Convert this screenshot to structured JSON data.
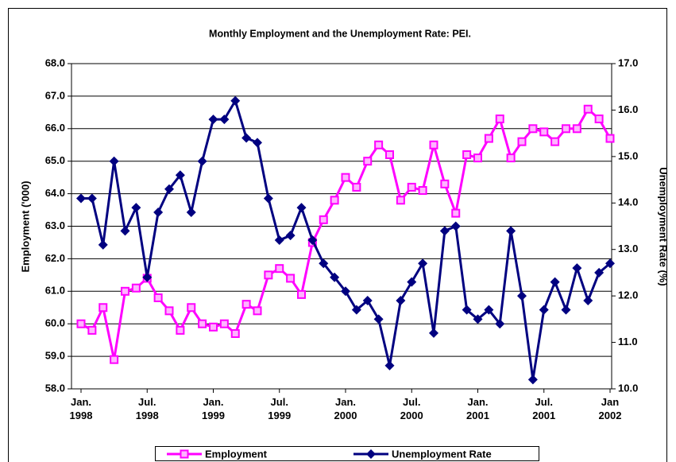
{
  "chart_data": {
    "type": "line",
    "title": "Monthly Employment and the Unemployment Rate: PEI.",
    "ylabel": "Employment ('000)",
    "y2label": "Unemployment Rate (%)",
    "categories": [
      "Jan. 1998",
      null,
      null,
      null,
      null,
      null,
      "Jul. 1998",
      null,
      null,
      null,
      null,
      null,
      "Jan. 1999",
      null,
      null,
      null,
      null,
      null,
      "Jul. 1999",
      null,
      null,
      null,
      null,
      null,
      "Jan. 2000",
      null,
      null,
      null,
      null,
      null,
      "Jul. 2000",
      null,
      null,
      null,
      null,
      null,
      "Jan. 2001",
      null,
      null,
      null,
      null,
      null,
      "Jul. 2001",
      null,
      null,
      null,
      null,
      null,
      "Jan 2002"
    ],
    "ylim": [
      58,
      68
    ],
    "yticks": [
      {
        "value": 58,
        "label": "58.0"
      },
      {
        "value": 59,
        "label": "59.0"
      },
      {
        "value": 60,
        "label": "60.0"
      },
      {
        "value": 61,
        "label": "61.0"
      },
      {
        "value": 62,
        "label": "62.0"
      },
      {
        "value": 63,
        "label": "63.0"
      },
      {
        "value": 64,
        "label": "64.0"
      },
      {
        "value": 65,
        "label": "65.0"
      },
      {
        "value": 66,
        "label": "66.0"
      },
      {
        "value": 67,
        "label": "67.0"
      },
      {
        "value": 68,
        "label": "68.0"
      }
    ],
    "y2lim": [
      10,
      17
    ],
    "y2ticks": [
      {
        "value": 10,
        "label": "10.0"
      },
      {
        "value": 11,
        "label": "11.0"
      },
      {
        "value": 12,
        "label": "12.0"
      },
      {
        "value": 13,
        "label": "13.0"
      },
      {
        "value": 14,
        "label": "14.0"
      },
      {
        "value": 15,
        "label": "15.0"
      },
      {
        "value": 16,
        "label": "16.0"
      },
      {
        "value": 17,
        "label": "17.0"
      }
    ],
    "grid": true,
    "legend": "bottom",
    "series": [
      {
        "name": "Employment",
        "color": "#ff00ff",
        "marker": "square",
        "axis": "y",
        "values": [
          60.0,
          59.8,
          60.5,
          58.9,
          61.0,
          61.1,
          61.4,
          60.8,
          60.4,
          59.8,
          60.5,
          60.0,
          59.9,
          60.0,
          59.7,
          60.6,
          60.4,
          61.5,
          61.7,
          61.4,
          60.9,
          62.5,
          63.2,
          63.8,
          64.5,
          64.2,
          65.0,
          65.5,
          65.2,
          63.8,
          64.2,
          64.1,
          65.5,
          64.3,
          63.4,
          65.2,
          65.1,
          65.7,
          66.3,
          65.1,
          65.6,
          66.0,
          65.9,
          65.6,
          66.0,
          66.0,
          66.6,
          66.3,
          65.7
        ]
      },
      {
        "name": "Unemployment Rate",
        "color": "#000080",
        "marker": "diamond",
        "axis": "y2",
        "values": [
          14.1,
          14.1,
          13.1,
          14.9,
          13.4,
          13.9,
          12.4,
          13.8,
          14.3,
          14.6,
          13.8,
          14.9,
          15.8,
          15.8,
          16.2,
          15.4,
          15.3,
          14.1,
          13.2,
          13.3,
          13.9,
          13.2,
          12.7,
          12.4,
          12.1,
          11.7,
          11.9,
          11.5,
          10.5,
          11.9,
          12.3,
          12.7,
          11.2,
          13.4,
          13.5,
          11.7,
          11.5,
          11.7,
          11.4,
          13.4,
          12.0,
          10.2,
          11.7,
          12.3,
          11.7,
          12.6,
          11.9,
          12.5,
          12.7
        ]
      }
    ]
  }
}
